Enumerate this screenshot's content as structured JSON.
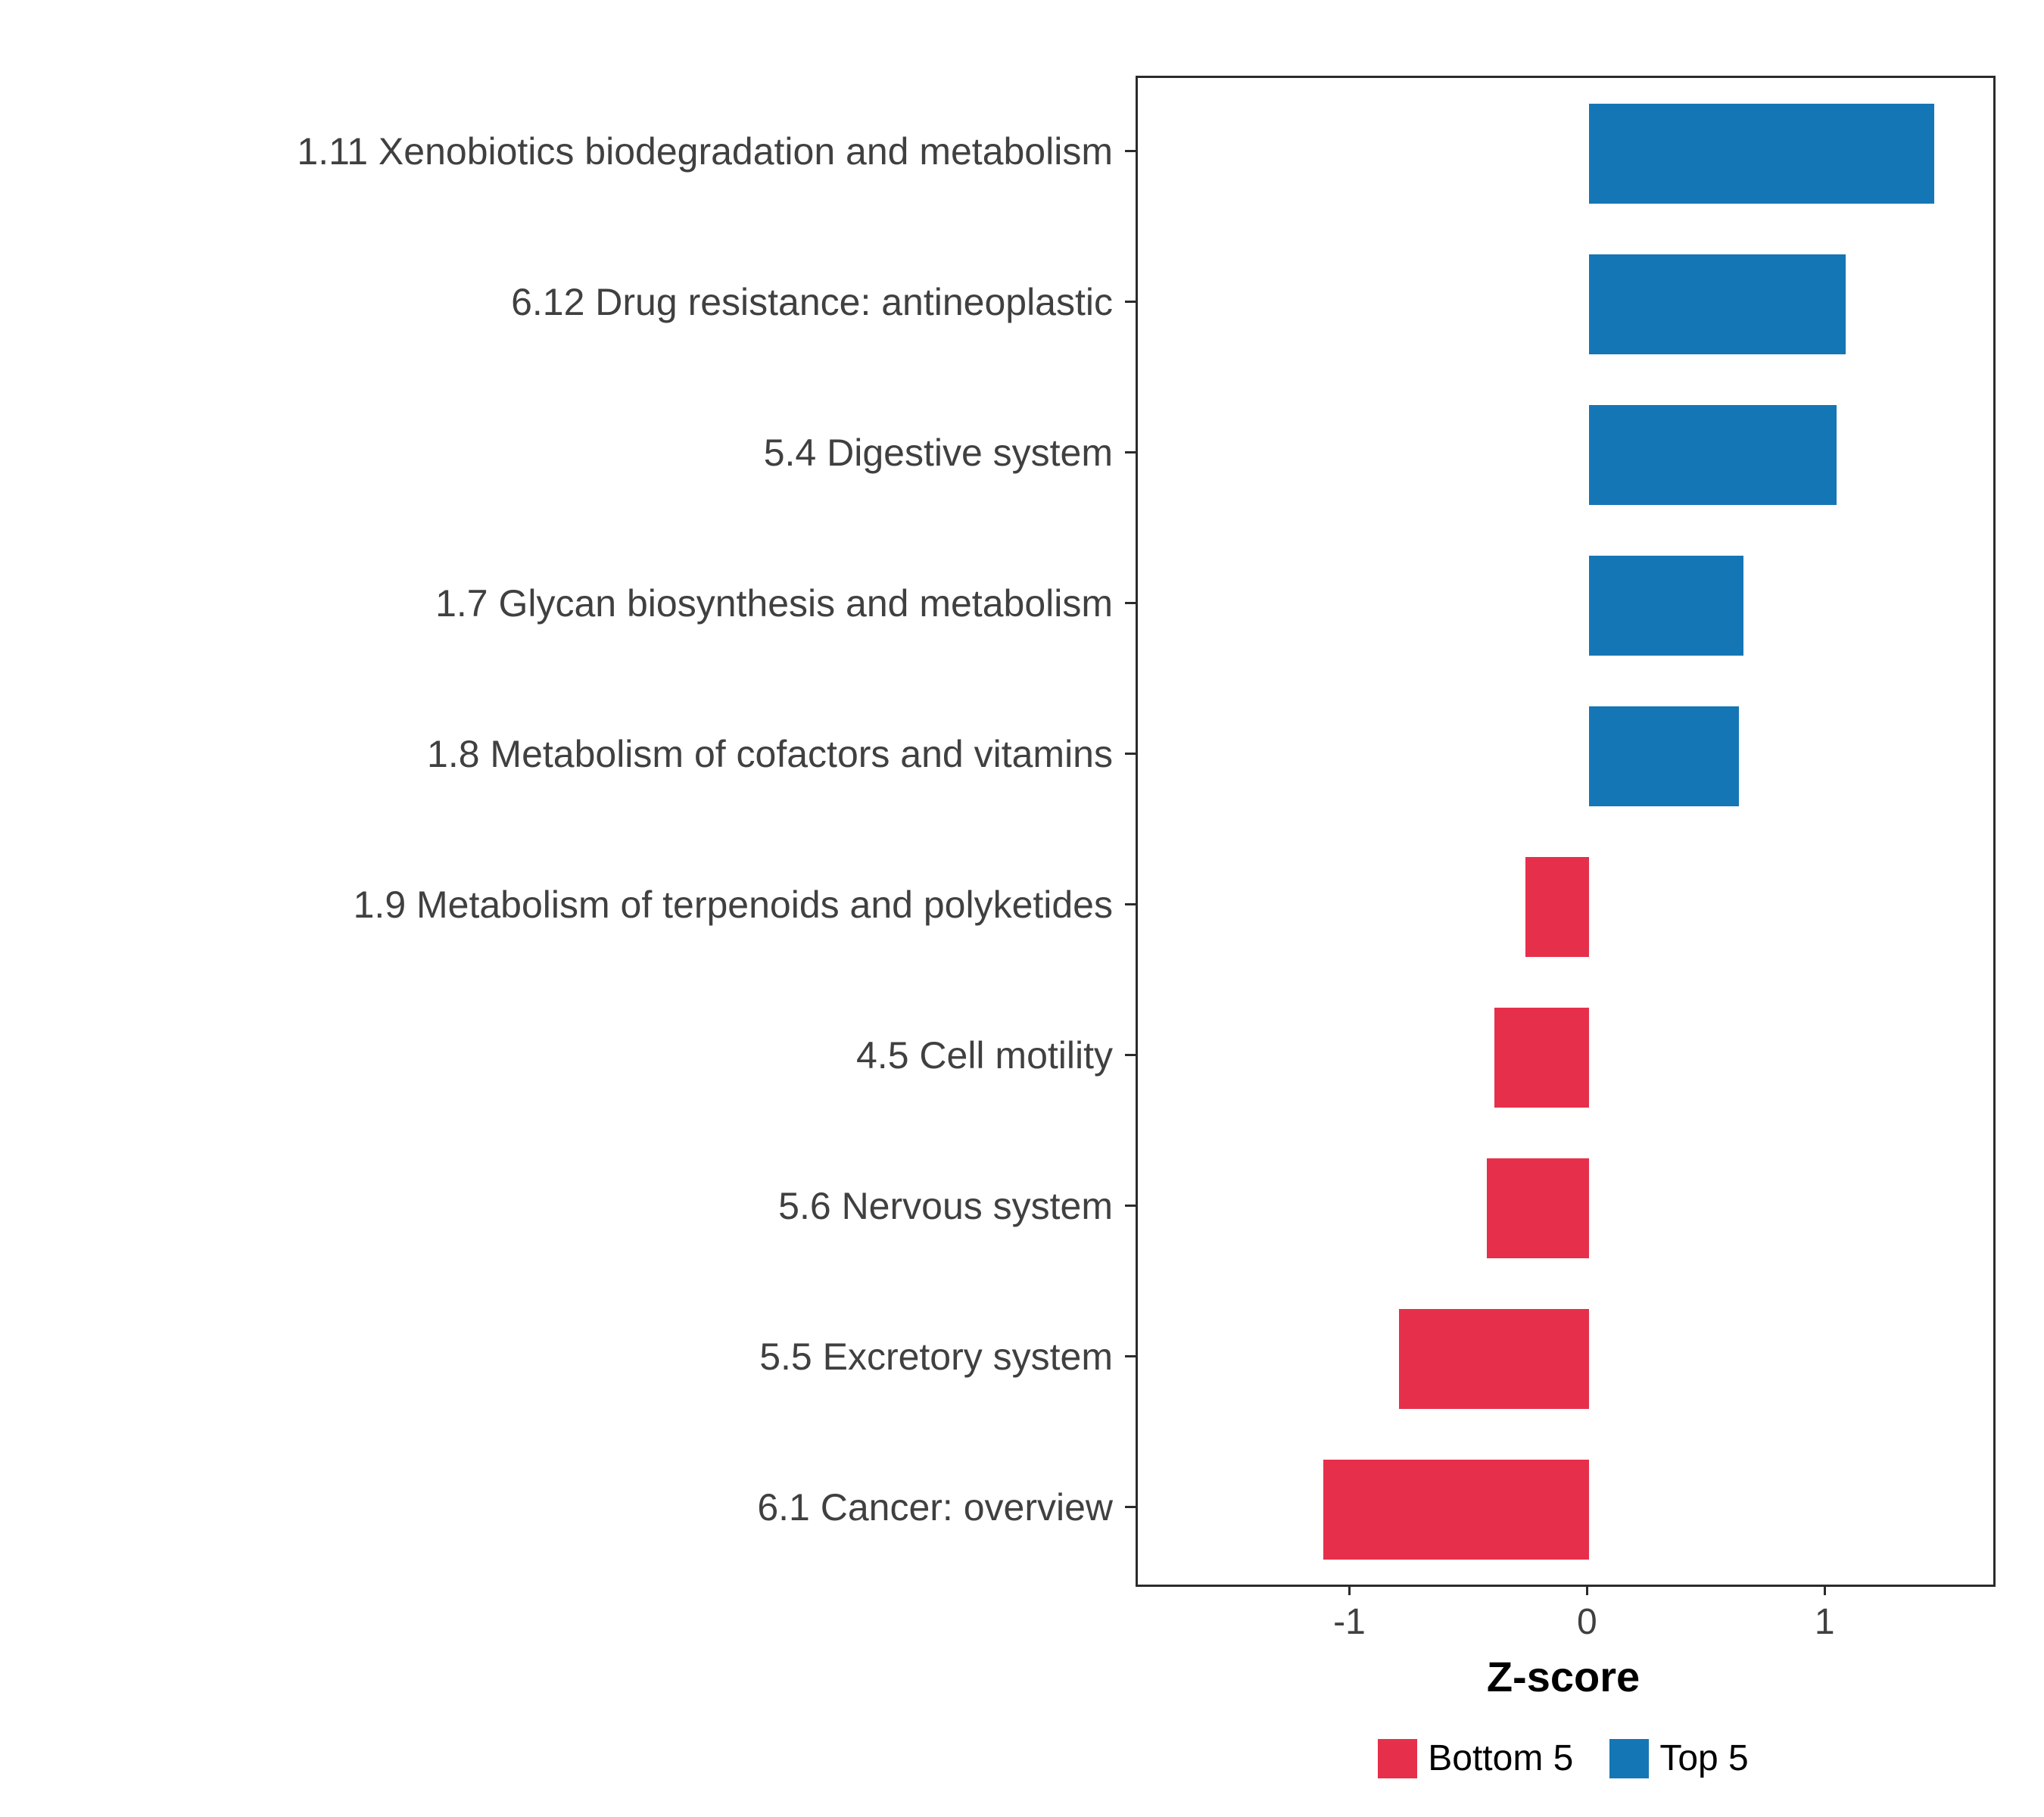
{
  "chart_data": {
    "type": "bar",
    "orientation": "horizontal",
    "title": "",
    "xlabel": "Z-score",
    "ylabel": "",
    "xlim": [
      -1.9,
      1.7
    ],
    "xticks": [
      "-1",
      "0",
      "1"
    ],
    "xtick_values": [
      -1,
      0,
      1
    ],
    "grid": false,
    "legend_position": "bottom",
    "categories": [
      "1.11 Xenobiotics biodegradation and metabolism",
      "6.12 Drug resistance: antineoplastic",
      "5.4 Digestive system",
      "1.7 Glycan biosynthesis and metabolism",
      "1.8 Metabolism of cofactors and vitamins",
      "1.9 Metabolism of terpenoids and polyketides",
      "4.5 Cell motility",
      "5.6 Nervous system",
      "5.5 Excretory system",
      "6.1 Cancer: overview"
    ],
    "values": [
      1.45,
      1.08,
      1.04,
      0.65,
      0.63,
      -0.27,
      -0.4,
      -0.43,
      -0.8,
      -1.12
    ],
    "groups": [
      "Top 5",
      "Top 5",
      "Top 5",
      "Top 5",
      "Top 5",
      "Bottom 5",
      "Bottom 5",
      "Bottom 5",
      "Bottom 5",
      "Bottom 5"
    ],
    "colors": {
      "Top 5": "#1576B5",
      "Bottom 5": "#E6304B"
    },
    "legend": [
      {
        "label": "Bottom 5",
        "color": "#E6304B"
      },
      {
        "label": "Top 5",
        "color": "#1576B5"
      }
    ]
  }
}
